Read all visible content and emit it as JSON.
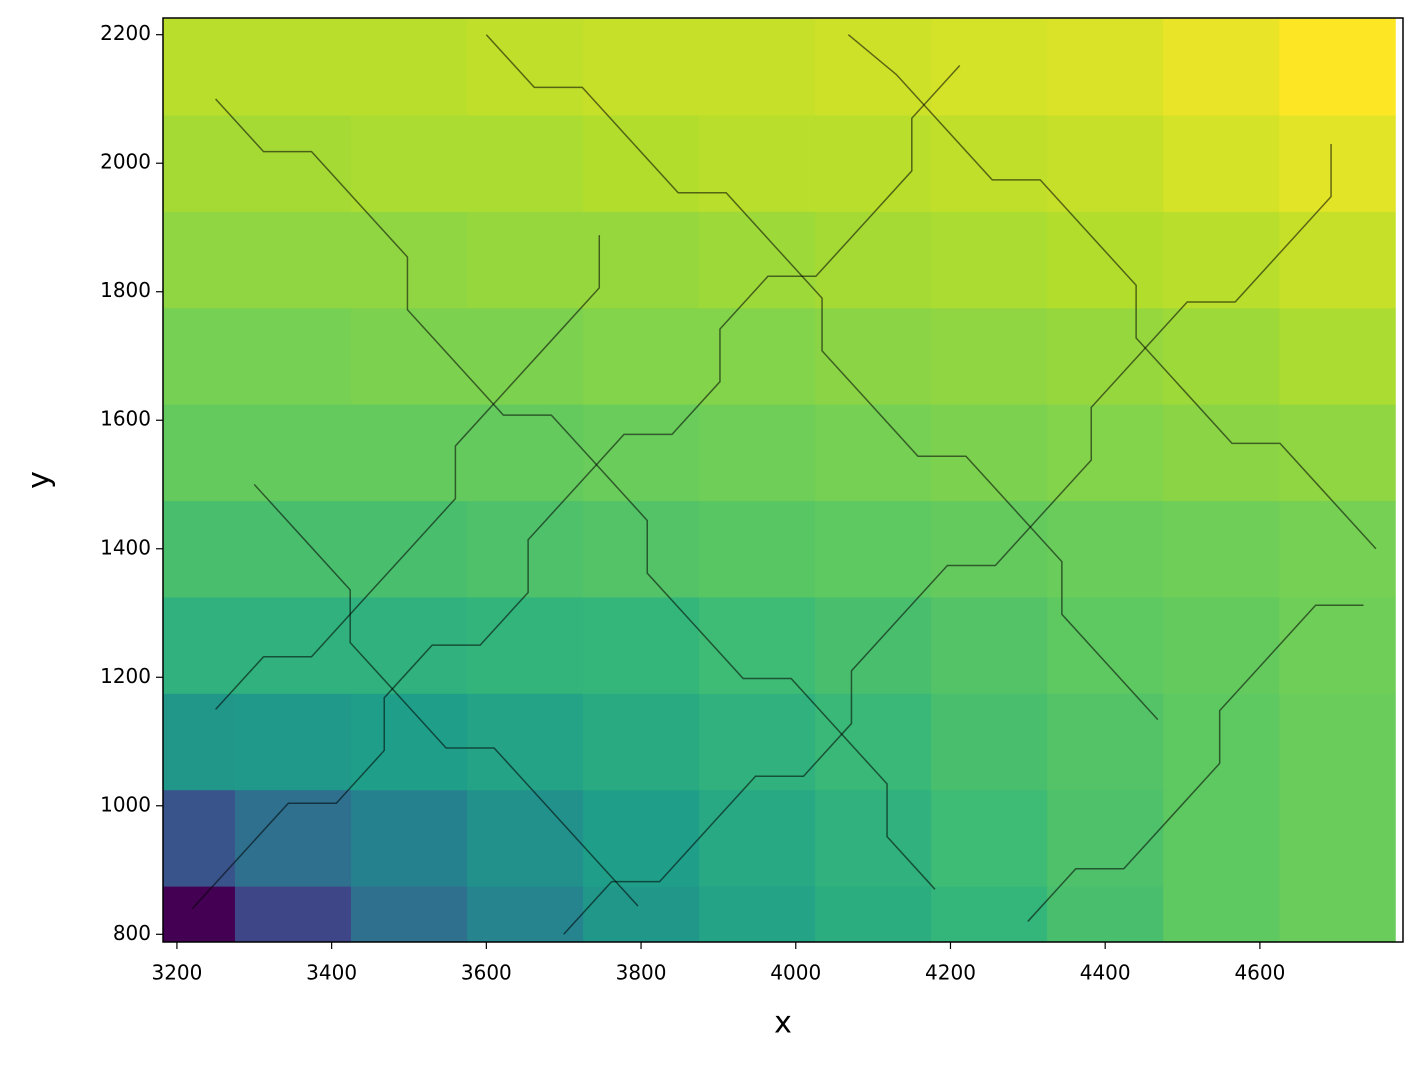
{
  "chart_data": {
    "type": "heatmap",
    "xlabel": "x",
    "ylabel": "y",
    "xlim": [
      3182,
      4785
    ],
    "ylim": [
      788,
      2226
    ],
    "xticks": [
      3200,
      3400,
      3600,
      3800,
      4000,
      4200,
      4400,
      4600
    ],
    "yticks": [
      800,
      1000,
      1200,
      1400,
      1600,
      1800,
      2000,
      2200
    ],
    "colormap": "viridis",
    "heatmap": {
      "x": [
        3200,
        3350,
        3500,
        3650,
        3800,
        3950,
        4100,
        4250,
        4400,
        4550,
        4700
      ],
      "y": [
        800,
        950,
        1100,
        1250,
        1400,
        1550,
        1700,
        1850,
        2000,
        2150
      ],
      "z": [
        [
          0.05,
          0.25,
          0.4,
          0.48,
          0.55,
          0.6,
          0.64,
          0.68,
          0.72,
          0.76,
          0.78
        ],
        [
          0.3,
          0.4,
          0.47,
          0.53,
          0.58,
          0.62,
          0.66,
          0.7,
          0.73,
          0.76,
          0.78
        ],
        [
          0.55,
          0.56,
          0.58,
          0.6,
          0.63,
          0.66,
          0.69,
          0.72,
          0.74,
          0.76,
          0.78
        ],
        [
          0.66,
          0.66,
          0.66,
          0.67,
          0.68,
          0.7,
          0.72,
          0.74,
          0.76,
          0.77,
          0.79
        ],
        [
          0.72,
          0.72,
          0.72,
          0.73,
          0.74,
          0.75,
          0.76,
          0.77,
          0.78,
          0.79,
          0.8
        ],
        [
          0.77,
          0.77,
          0.77,
          0.77,
          0.78,
          0.79,
          0.8,
          0.81,
          0.82,
          0.83,
          0.84
        ],
        [
          0.8,
          0.8,
          0.81,
          0.81,
          0.82,
          0.82,
          0.83,
          0.84,
          0.85,
          0.86,
          0.88
        ],
        [
          0.84,
          0.84,
          0.84,
          0.85,
          0.85,
          0.86,
          0.87,
          0.88,
          0.89,
          0.9,
          0.92
        ],
        [
          0.87,
          0.87,
          0.88,
          0.88,
          0.89,
          0.9,
          0.9,
          0.91,
          0.92,
          0.94,
          0.96
        ],
        [
          0.9,
          0.9,
          0.9,
          0.91,
          0.92,
          0.92,
          0.93,
          0.94,
          0.95,
          0.97,
          1.0
        ]
      ]
    },
    "series": [
      {
        "color": "#000000",
        "x": [
          3220,
          3282,
          3344,
          3406,
          3468,
          3468,
          3530,
          3592,
          3654,
          3654,
          3716,
          3778,
          3840,
          3902,
          3902,
          3964,
          4026,
          4088,
          4150,
          4150,
          4212
        ],
        "y": [
          840,
          922,
          1004,
          1004,
          1086,
          1168,
          1250,
          1250,
          1332,
          1414,
          1496,
          1578,
          1578,
          1660,
          1742,
          1824,
          1824,
          1906,
          1988,
          2070,
          2152
        ]
      },
      {
        "color": "#000000",
        "x": [
          3700,
          3762,
          3824,
          3886,
          3948,
          4010,
          4072,
          4072,
          4134,
          4196,
          4258,
          4320,
          4382,
          4382,
          4444,
          4506,
          4568,
          4630,
          4692,
          4692
        ],
        "y": [
          800,
          882,
          882,
          964,
          1046,
          1046,
          1128,
          1210,
          1292,
          1374,
          1374,
          1456,
          1538,
          1620,
          1702,
          1784,
          1784,
          1866,
          1948,
          2030
        ]
      },
      {
        "color": "#000000",
        "x": [
          3250,
          3312,
          3374,
          3436,
          3498,
          3498,
          3560,
          3622,
          3684,
          3746,
          3808,
          3808,
          3870,
          3932,
          3994,
          4056,
          4118,
          4118,
          4180
        ],
        "y": [
          2100,
          2018,
          2018,
          1936,
          1854,
          1772,
          1690,
          1608,
          1608,
          1526,
          1444,
          1362,
          1280,
          1198,
          1198,
          1116,
          1034,
          952,
          870
        ]
      },
      {
        "color": "#000000",
        "x": [
          4750,
          4688,
          4626,
          4564,
          4502,
          4440,
          4440,
          4378,
          4316,
          4254,
          4192,
          4130,
          4068
        ],
        "y": [
          1400,
          1482,
          1564,
          1564,
          1646,
          1728,
          1810,
          1892,
          1974,
          1974,
          2056,
          2138,
          2200
        ]
      },
      {
        "color": "#000000",
        "x": [
          3300,
          3362,
          3424,
          3424,
          3486,
          3548,
          3610,
          3672,
          3734,
          3796
        ],
        "y": [
          1500,
          1418,
          1336,
          1254,
          1172,
          1090,
          1090,
          1008,
          926,
          844
        ]
      },
      {
        "color": "#000000",
        "x": [
          4300,
          4362,
          4424,
          4486,
          4548,
          4548,
          4610,
          4672,
          4734
        ],
        "y": [
          820,
          902,
          902,
          984,
          1066,
          1148,
          1230,
          1312,
          1312
        ]
      },
      {
        "color": "#000000",
        "x": [
          3600,
          3662,
          3724,
          3786,
          3848,
          3910,
          3972,
          4034,
          4034,
          4096,
          4158,
          4220,
          4282,
          4344,
          4344,
          4406,
          4468
        ],
        "y": [
          2200,
          2118,
          2118,
          2036,
          1954,
          1954,
          1872,
          1790,
          1708,
          1626,
          1544,
          1544,
          1462,
          1380,
          1298,
          1216,
          1134
        ]
      },
      {
        "color": "#000000",
        "x": [
          3250,
          3312,
          3374,
          3436,
          3498,
          3560,
          3560,
          3622,
          3684,
          3746,
          3746
        ],
        "y": [
          1150,
          1232,
          1232,
          1314,
          1396,
          1478,
          1560,
          1642,
          1724,
          1806,
          1888
        ]
      }
    ]
  }
}
